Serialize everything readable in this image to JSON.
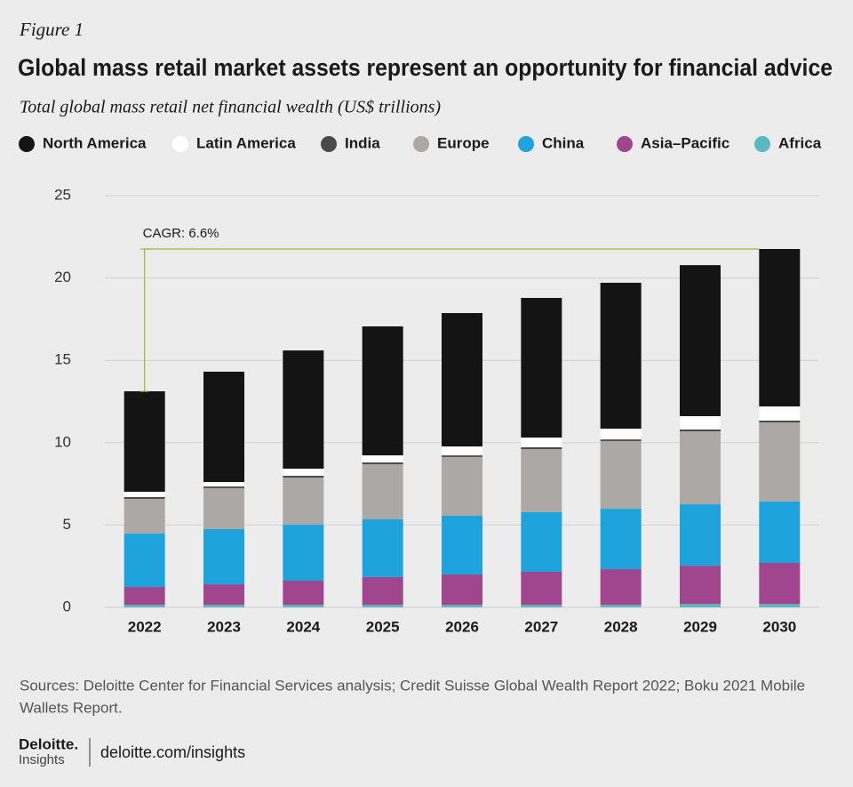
{
  "figure_label": "Figure 1",
  "chart_data": {
    "type": "bar",
    "stacked": true,
    "title": "Global mass retail market assets represent an opportunity for financial advice",
    "subtitle": "Total global mass retail net financial wealth (US$ trillions)",
    "annotation": "CAGR: 6.6%",
    "categories": [
      "2022",
      "2023",
      "2024",
      "2025",
      "2026",
      "2027",
      "2028",
      "2029",
      "2030"
    ],
    "series": [
      {
        "name": "North America",
        "color": "#141414",
        "values": [
          6.1,
          6.7,
          7.18,
          7.83,
          8.1,
          8.48,
          8.86,
          9.17,
          9.56
        ]
      },
      {
        "name": "Latin America",
        "color": "#ffffff",
        "values": [
          0.32,
          0.27,
          0.43,
          0.43,
          0.54,
          0.59,
          0.65,
          0.81,
          0.86
        ]
      },
      {
        "name": "India",
        "color": "#4a4a4a",
        "values": [
          0.11,
          0.1,
          0.11,
          0.11,
          0.1,
          0.11,
          0.1,
          0.11,
          0.11
        ]
      },
      {
        "name": "Europe",
        "color": "#aba8a5",
        "values": [
          2.11,
          2.49,
          2.86,
          3.34,
          3.57,
          3.83,
          4.11,
          4.43,
          4.8
        ]
      },
      {
        "name": "China",
        "color": "#1fa3dc",
        "values": [
          3.24,
          3.35,
          3.4,
          3.51,
          3.56,
          3.62,
          3.67,
          3.73,
          3.73
        ]
      },
      {
        "name": "Asia–Pacific",
        "color": "#a0468f",
        "values": [
          1.09,
          1.25,
          1.47,
          1.69,
          1.85,
          2.01,
          2.17,
          2.33,
          2.5
        ]
      },
      {
        "name": "Africa",
        "color": "#5cb8c0",
        "values": [
          0.15,
          0.15,
          0.15,
          0.15,
          0.15,
          0.15,
          0.15,
          0.2,
          0.2
        ]
      }
    ],
    "ylim": [
      0,
      25
    ],
    "yticks": [
      0,
      5,
      10,
      15,
      20,
      25
    ],
    "grid": true
  },
  "source": [
    "Sources: Deloitte Center for Financial Services analysis; Credit Suisse Global Wealth Report 2022; Boku 2021 Mobile",
    "Wallets Report."
  ],
  "footer": {
    "brand": "Deloitte.",
    "brand_sub": "Insights",
    "url": "deloitte.com/insights"
  }
}
